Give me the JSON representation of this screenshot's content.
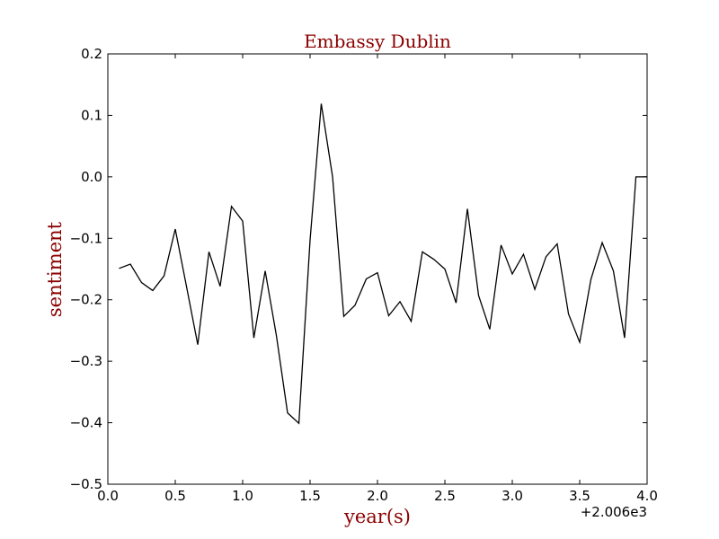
{
  "chart_data": {
    "type": "line",
    "title": "Embassy Dublin",
    "xlabel": "year(s)",
    "ylabel": "sentiment",
    "x_offset_label": "+2.006e3",
    "xlim": [
      0.0,
      4.0
    ],
    "ylim": [
      -0.5,
      0.2
    ],
    "xticks": [
      "0.0",
      "0.5",
      "1.0",
      "1.5",
      "2.0",
      "2.5",
      "3.0",
      "3.5",
      "4.0"
    ],
    "yticks": [
      "0.2",
      "0.1",
      "0.0",
      "−0.1",
      "−0.2",
      "−0.3",
      "−0.4",
      "−0.5"
    ],
    "grid": false,
    "line_color": "#000000",
    "title_color": "#8b0000",
    "series": [
      {
        "x": [
          0.083,
          0.167,
          0.25,
          0.333,
          0.417,
          0.5,
          0.583,
          0.667,
          0.75,
          0.833,
          0.917,
          1.0,
          1.083,
          1.167,
          1.25,
          1.333,
          1.417,
          1.5,
          1.583,
          1.667,
          1.75,
          1.833,
          1.917,
          2.0,
          2.083,
          2.167,
          2.25,
          2.333,
          2.417,
          2.5,
          2.583,
          2.667,
          2.75,
          2.833,
          2.917,
          3.0,
          3.083,
          3.167,
          3.25,
          3.333,
          3.417,
          3.5,
          3.583,
          3.667,
          3.75,
          3.833,
          3.917,
          4.0
        ],
        "y": [
          -0.149,
          -0.142,
          -0.172,
          -0.185,
          -0.161,
          -0.085,
          -0.178,
          -0.273,
          -0.122,
          -0.178,
          -0.048,
          -0.072,
          -0.262,
          -0.153,
          -0.258,
          -0.384,
          -0.401,
          -0.103,
          0.119,
          0.0,
          -0.227,
          -0.209,
          -0.166,
          -0.156,
          -0.226,
          -0.203,
          -0.235,
          -0.122,
          -0.134,
          -0.15,
          -0.205,
          -0.052,
          -0.193,
          -0.248,
          -0.111,
          -0.158,
          -0.126,
          -0.183,
          -0.13,
          -0.109,
          -0.223,
          -0.269,
          -0.167,
          -0.107,
          -0.153,
          -0.262,
          0.0,
          0.0
        ]
      }
    ]
  }
}
